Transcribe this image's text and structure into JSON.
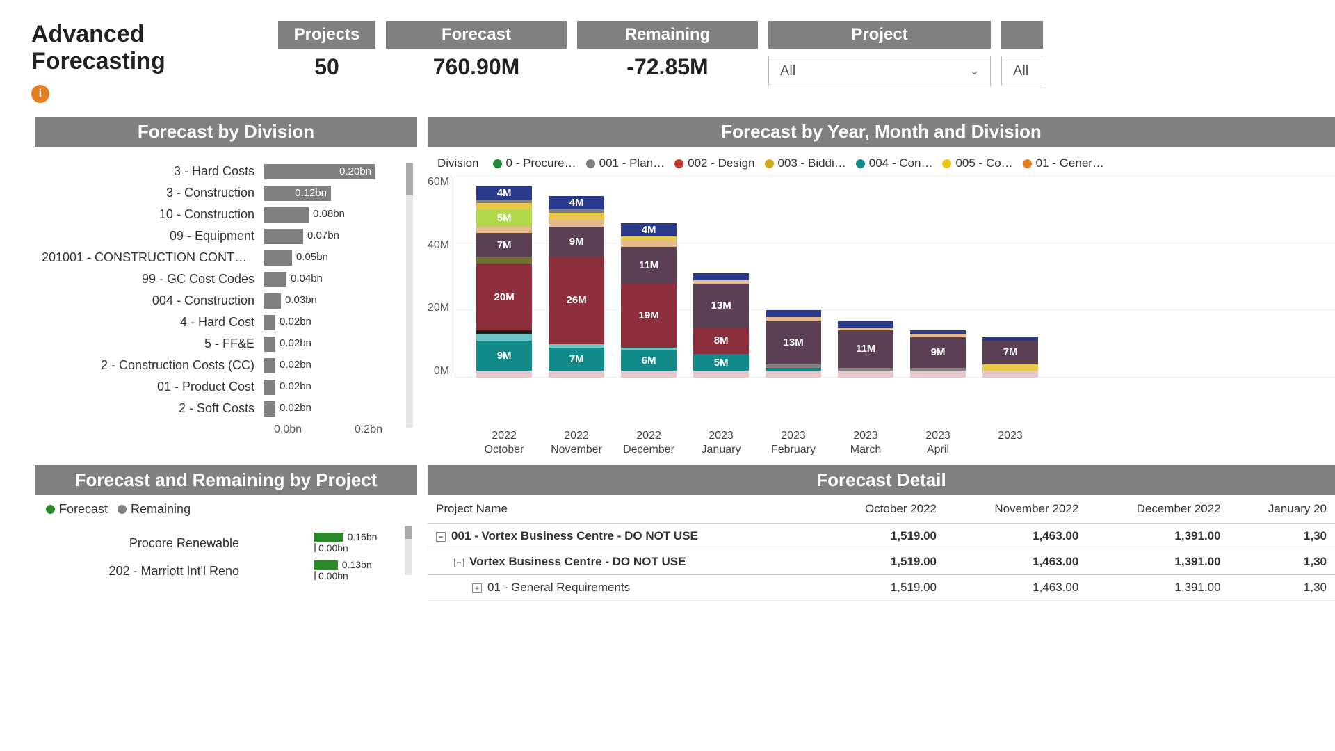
{
  "title": "Advanced Forecasting",
  "kpis": {
    "projects": {
      "label": "Projects",
      "value": "50"
    },
    "forecast": {
      "label": "Forecast",
      "value": "760.90M"
    },
    "remaining": {
      "label": "Remaining",
      "value": "-72.85M"
    }
  },
  "filters": {
    "project": {
      "label": "Project",
      "selected": "All"
    },
    "second": {
      "selected": "All"
    }
  },
  "forecast_by_division": {
    "title": "Forecast by Division",
    "type": "bar-horizontal",
    "bar_color": "#808080",
    "value_font_size": 15,
    "x_axis": {
      "min": "0.0bn",
      "max": "0.2bn",
      "max_val": 0.2
    },
    "rows": [
      {
        "label": "3 - Hard Costs",
        "value_label": "0.20bn",
        "value": 0.2,
        "inside": true
      },
      {
        "label": "3 - Construction",
        "value_label": "0.12bn",
        "value": 0.12,
        "inside": true
      },
      {
        "label": "10 - Construction",
        "value_label": "0.08bn",
        "value": 0.08,
        "inside": false
      },
      {
        "label": "09 - Equipment",
        "value_label": "0.07bn",
        "value": 0.07,
        "inside": false
      },
      {
        "label": "201001 - CONSTRUCTION CONTR…",
        "value_label": "0.05bn",
        "value": 0.05,
        "inside": false
      },
      {
        "label": "99 - GC Cost Codes",
        "value_label": "0.04bn",
        "value": 0.04,
        "inside": false
      },
      {
        "label": "004 - Construction",
        "value_label": "0.03bn",
        "value": 0.03,
        "inside": false
      },
      {
        "label": "4 - Hard Cost",
        "value_label": "0.02bn",
        "value": 0.02,
        "inside": false
      },
      {
        "label": "5 - FF&E",
        "value_label": "0.02bn",
        "value": 0.02,
        "inside": false
      },
      {
        "label": "2 - Construction Costs (CC)",
        "value_label": "0.02bn",
        "value": 0.02,
        "inside": false
      },
      {
        "label": "01 - Product Cost",
        "value_label": "0.02bn",
        "value": 0.02,
        "inside": false
      },
      {
        "label": "2 - Soft Costs",
        "value_label": "0.02bn",
        "value": 0.02,
        "inside": false
      }
    ]
  },
  "forecast_by_month": {
    "title": "Forecast by Year, Month and Division",
    "type": "stacked-bar",
    "legend_title": "Division",
    "legend": [
      {
        "label": "0 - Procure…",
        "color": "#1d8a3a"
      },
      {
        "label": "001 - Plan…",
        "color": "#808080"
      },
      {
        "label": "002 - Design",
        "color": "#c0392b"
      },
      {
        "label": "003 - Biddi…",
        "color": "#d4a91a"
      },
      {
        "label": "004 - Con…",
        "color": "#138a8a"
      },
      {
        "label": "005 - Co…",
        "color": "#f1c40f"
      },
      {
        "label": "01 - Gener…",
        "color": "#e67e22"
      }
    ],
    "y_axis": {
      "max": 60,
      "ticks": [
        "60M",
        "40M",
        "20M",
        "0M"
      ]
    },
    "segment_colors": {
      "teal": "#138a8a",
      "maroon": "#8e2f3e",
      "darkpurple": "#5b3f55",
      "peach": "#e6b98a",
      "lime": "#b0d84a",
      "navy": "#2a3a8a",
      "pink": "#e6c7cc",
      "grey": "#808080",
      "yellow": "#e8c84a",
      "olive": "#6e6e2e",
      "ltteal": "#6ec3c3",
      "black": "#222"
    },
    "columns": [
      {
        "label": "2022 October",
        "segments": [
          {
            "c": "pink",
            "v": 2,
            "t": ""
          },
          {
            "c": "teal",
            "v": 9,
            "t": "9M"
          },
          {
            "c": "ltteal",
            "v": 2,
            "t": ""
          },
          {
            "c": "black",
            "v": 1,
            "t": ""
          },
          {
            "c": "maroon",
            "v": 20,
            "t": "20M"
          },
          {
            "c": "olive",
            "v": 2,
            "t": ""
          },
          {
            "c": "darkpurple",
            "v": 7,
            "t": "7M"
          },
          {
            "c": "peach",
            "v": 2,
            "t": ""
          },
          {
            "c": "lime",
            "v": 5,
            "t": "5M"
          },
          {
            "c": "yellow",
            "v": 2,
            "t": ""
          },
          {
            "c": "grey",
            "v": 1,
            "t": ""
          },
          {
            "c": "navy",
            "v": 4,
            "t": "4M"
          }
        ]
      },
      {
        "label": "2022 November",
        "segments": [
          {
            "c": "pink",
            "v": 2,
            "t": ""
          },
          {
            "c": "teal",
            "v": 7,
            "t": "7M"
          },
          {
            "c": "ltteal",
            "v": 1,
            "t": ""
          },
          {
            "c": "maroon",
            "v": 26,
            "t": "26M"
          },
          {
            "c": "darkpurple",
            "v": 9,
            "t": "9M"
          },
          {
            "c": "peach",
            "v": 2,
            "t": ""
          },
          {
            "c": "yellow",
            "v": 2,
            "t": ""
          },
          {
            "c": "grey",
            "v": 1,
            "t": ""
          },
          {
            "c": "navy",
            "v": 4,
            "t": "4M"
          }
        ]
      },
      {
        "label": "2022 December",
        "segments": [
          {
            "c": "pink",
            "v": 2,
            "t": ""
          },
          {
            "c": "teal",
            "v": 6,
            "t": "6M"
          },
          {
            "c": "ltteal",
            "v": 1,
            "t": ""
          },
          {
            "c": "maroon",
            "v": 19,
            "t": "19M"
          },
          {
            "c": "darkpurple",
            "v": 11,
            "t": "11M"
          },
          {
            "c": "peach",
            "v": 2,
            "t": ""
          },
          {
            "c": "yellow",
            "v": 1,
            "t": ""
          },
          {
            "c": "navy",
            "v": 4,
            "t": "4M"
          }
        ]
      },
      {
        "label": "2023 January",
        "segments": [
          {
            "c": "pink",
            "v": 2,
            "t": ""
          },
          {
            "c": "teal",
            "v": 5,
            "t": "5M"
          },
          {
            "c": "maroon",
            "v": 8,
            "t": "8M"
          },
          {
            "c": "darkpurple",
            "v": 13,
            "t": "13M"
          },
          {
            "c": "peach",
            "v": 1,
            "t": ""
          },
          {
            "c": "navy",
            "v": 2,
            "t": ""
          }
        ]
      },
      {
        "label": "2023 February",
        "segments": [
          {
            "c": "pink",
            "v": 2,
            "t": ""
          },
          {
            "c": "teal",
            "v": 1,
            "t": ""
          },
          {
            "c": "grey",
            "v": 1,
            "t": ""
          },
          {
            "c": "darkpurple",
            "v": 13,
            "t": "13M"
          },
          {
            "c": "peach",
            "v": 1,
            "t": ""
          },
          {
            "c": "navy",
            "v": 2,
            "t": ""
          }
        ]
      },
      {
        "label": "2023 March",
        "segments": [
          {
            "c": "pink",
            "v": 2,
            "t": ""
          },
          {
            "c": "grey",
            "v": 1,
            "t": ""
          },
          {
            "c": "darkpurple",
            "v": 11,
            "t": "11M"
          },
          {
            "c": "peach",
            "v": 1,
            "t": ""
          },
          {
            "c": "navy",
            "v": 2,
            "t": ""
          }
        ]
      },
      {
        "label": "2023 April",
        "segments": [
          {
            "c": "pink",
            "v": 2,
            "t": ""
          },
          {
            "c": "grey",
            "v": 1,
            "t": ""
          },
          {
            "c": "darkpurple",
            "v": 9,
            "t": "9M"
          },
          {
            "c": "peach",
            "v": 1,
            "t": ""
          },
          {
            "c": "navy",
            "v": 1,
            "t": ""
          }
        ]
      },
      {
        "label": "2023",
        "segments": [
          {
            "c": "pink",
            "v": 2,
            "t": ""
          },
          {
            "c": "yellow",
            "v": 2,
            "t": ""
          },
          {
            "c": "darkpurple",
            "v": 7,
            "t": "7M"
          },
          {
            "c": "navy",
            "v": 1,
            "t": ""
          }
        ]
      }
    ]
  },
  "forecast_remaining_project": {
    "title": "Forecast and Remaining by Project",
    "legend": [
      {
        "label": "Forecast",
        "color": "#2a8a2a"
      },
      {
        "label": "Remaining",
        "color": "#808080"
      }
    ],
    "rows": [
      {
        "label": "Procore Renewable",
        "forecast": 0.16,
        "forecast_label": "0.16bn",
        "remaining": 0.0,
        "remaining_label": "0.00bn"
      },
      {
        "label": "202 - Marriott Int'l Reno",
        "forecast": 0.13,
        "forecast_label": "0.13bn",
        "remaining": 0.0,
        "remaining_label": "0.00bn"
      }
    ]
  },
  "forecast_detail": {
    "title": "Forecast Detail",
    "columns": [
      "Project Name",
      "October 2022",
      "November 2022",
      "December 2022",
      "January 20"
    ],
    "rows": [
      {
        "bold": true,
        "indent": 0,
        "toggle": "−",
        "name": "001 - Vortex Business Centre - DO NOT USE",
        "vals": [
          "1,519.00",
          "1,463.00",
          "1,391.00",
          "1,30"
        ]
      },
      {
        "bold": true,
        "indent": 1,
        "toggle": "−",
        "name": "Vortex Business Centre - DO NOT USE",
        "vals": [
          "1,519.00",
          "1,463.00",
          "1,391.00",
          "1,30"
        ]
      },
      {
        "bold": false,
        "indent": 2,
        "toggle": "+",
        "name": "01 - General Requirements",
        "vals": [
          "1,519.00",
          "1,463.00",
          "1,391.00",
          "1,30"
        ]
      }
    ]
  }
}
